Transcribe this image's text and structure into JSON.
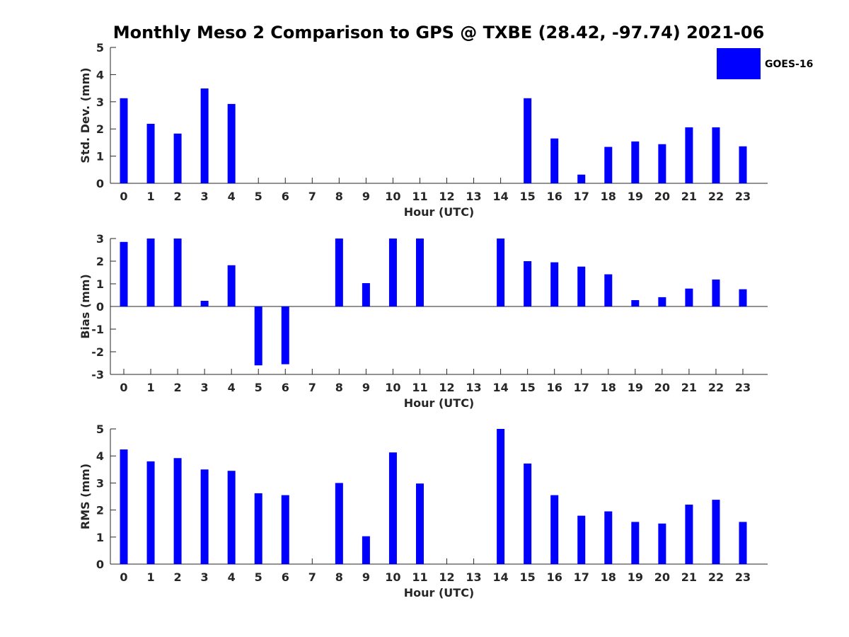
{
  "title": "Monthly Meso 2 Comparison to GPS @ TXBE (28.42, -97.74) 2021-06",
  "legend": {
    "label": "GOES-16",
    "color": "#0000ff"
  },
  "chart_data": [
    {
      "type": "bar",
      "xlabel": "Hour (UTC)",
      "ylabel": "Std. Dev. (mm)",
      "ylim": [
        0,
        5
      ],
      "yticks": [
        0,
        1,
        2,
        3,
        4,
        5
      ],
      "categories": [
        "0",
        "1",
        "2",
        "3",
        "4",
        "5",
        "6",
        "7",
        "8",
        "9",
        "10",
        "11",
        "12",
        "13",
        "14",
        "15",
        "16",
        "17",
        "18",
        "19",
        "20",
        "21",
        "22",
        "23"
      ],
      "series": [
        {
          "name": "GOES-16",
          "color": "#0000ff",
          "values": [
            3.13,
            2.19,
            1.83,
            3.49,
            2.92,
            0,
            0,
            0,
            0,
            0,
            0,
            0,
            0,
            0,
            0,
            3.13,
            1.65,
            0.32,
            1.34,
            1.54,
            1.44,
            2.06,
            2.06,
            1.36
          ]
        }
      ]
    },
    {
      "type": "bar",
      "xlabel": "Hour (UTC)",
      "ylabel": "Bias (mm)",
      "ylim": [
        -3,
        3
      ],
      "yticks": [
        -3,
        -2,
        -1,
        0,
        1,
        2,
        3
      ],
      "categories": [
        "0",
        "1",
        "2",
        "3",
        "4",
        "5",
        "6",
        "7",
        "8",
        "9",
        "10",
        "11",
        "12",
        "13",
        "14",
        "15",
        "16",
        "17",
        "18",
        "19",
        "20",
        "21",
        "22",
        "23"
      ],
      "series": [
        {
          "name": "GOES-16",
          "color": "#0000ff",
          "values": [
            2.85,
            3.0,
            3.0,
            0.25,
            1.82,
            -2.6,
            -2.55,
            0,
            3.0,
            1.03,
            3.0,
            3.0,
            0,
            0,
            3.0,
            2.0,
            1.95,
            1.76,
            1.42,
            0.28,
            0.41,
            0.79,
            1.19,
            0.76
          ]
        }
      ]
    },
    {
      "type": "bar",
      "xlabel": "Hour (UTC)",
      "ylabel": "RMS (mm)",
      "ylim": [
        0,
        5
      ],
      "yticks": [
        0,
        1,
        2,
        3,
        4,
        5
      ],
      "categories": [
        "0",
        "1",
        "2",
        "3",
        "4",
        "5",
        "6",
        "7",
        "8",
        "9",
        "10",
        "11",
        "12",
        "13",
        "14",
        "15",
        "16",
        "17",
        "18",
        "19",
        "20",
        "21",
        "22",
        "23"
      ],
      "series": [
        {
          "name": "GOES-16",
          "color": "#0000ff",
          "values": [
            4.24,
            3.8,
            3.92,
            3.5,
            3.45,
            2.62,
            2.55,
            0,
            3.0,
            1.03,
            4.13,
            2.98,
            0,
            0,
            5.0,
            3.72,
            2.55,
            1.79,
            1.95,
            1.56,
            1.5,
            2.2,
            2.38,
            1.56
          ]
        }
      ]
    }
  ]
}
